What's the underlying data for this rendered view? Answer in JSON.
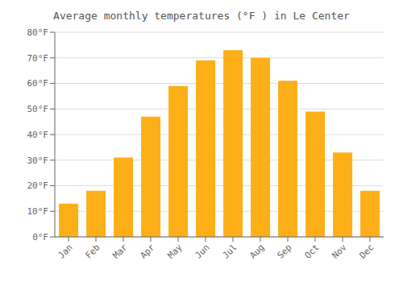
{
  "chart_data": {
    "type": "bar",
    "title": "Average monthly temperatures (°F ) in Le Center",
    "categories": [
      "Jan",
      "Feb",
      "Mar",
      "Apr",
      "May",
      "Jun",
      "Jul",
      "Aug",
      "Sep",
      "Oct",
      "Nov",
      "Dec"
    ],
    "values": [
      13,
      18,
      31,
      47,
      59,
      69,
      73,
      70,
      61,
      49,
      33,
      18
    ],
    "color": "#FCAF17",
    "ylim": [
      0,
      80
    ],
    "yticks": [
      {
        "value": 0,
        "label": "0°F"
      },
      {
        "value": 10,
        "label": "10°F"
      },
      {
        "value": 20,
        "label": "20°F"
      },
      {
        "value": 30,
        "label": "30°F"
      },
      {
        "value": 40,
        "label": "40°F"
      },
      {
        "value": 50,
        "label": "50°F"
      },
      {
        "value": 60,
        "label": "60°F"
      },
      {
        "value": 70,
        "label": "70°F"
      },
      {
        "value": 80,
        "label": "80°F"
      }
    ],
    "grid": true
  }
}
